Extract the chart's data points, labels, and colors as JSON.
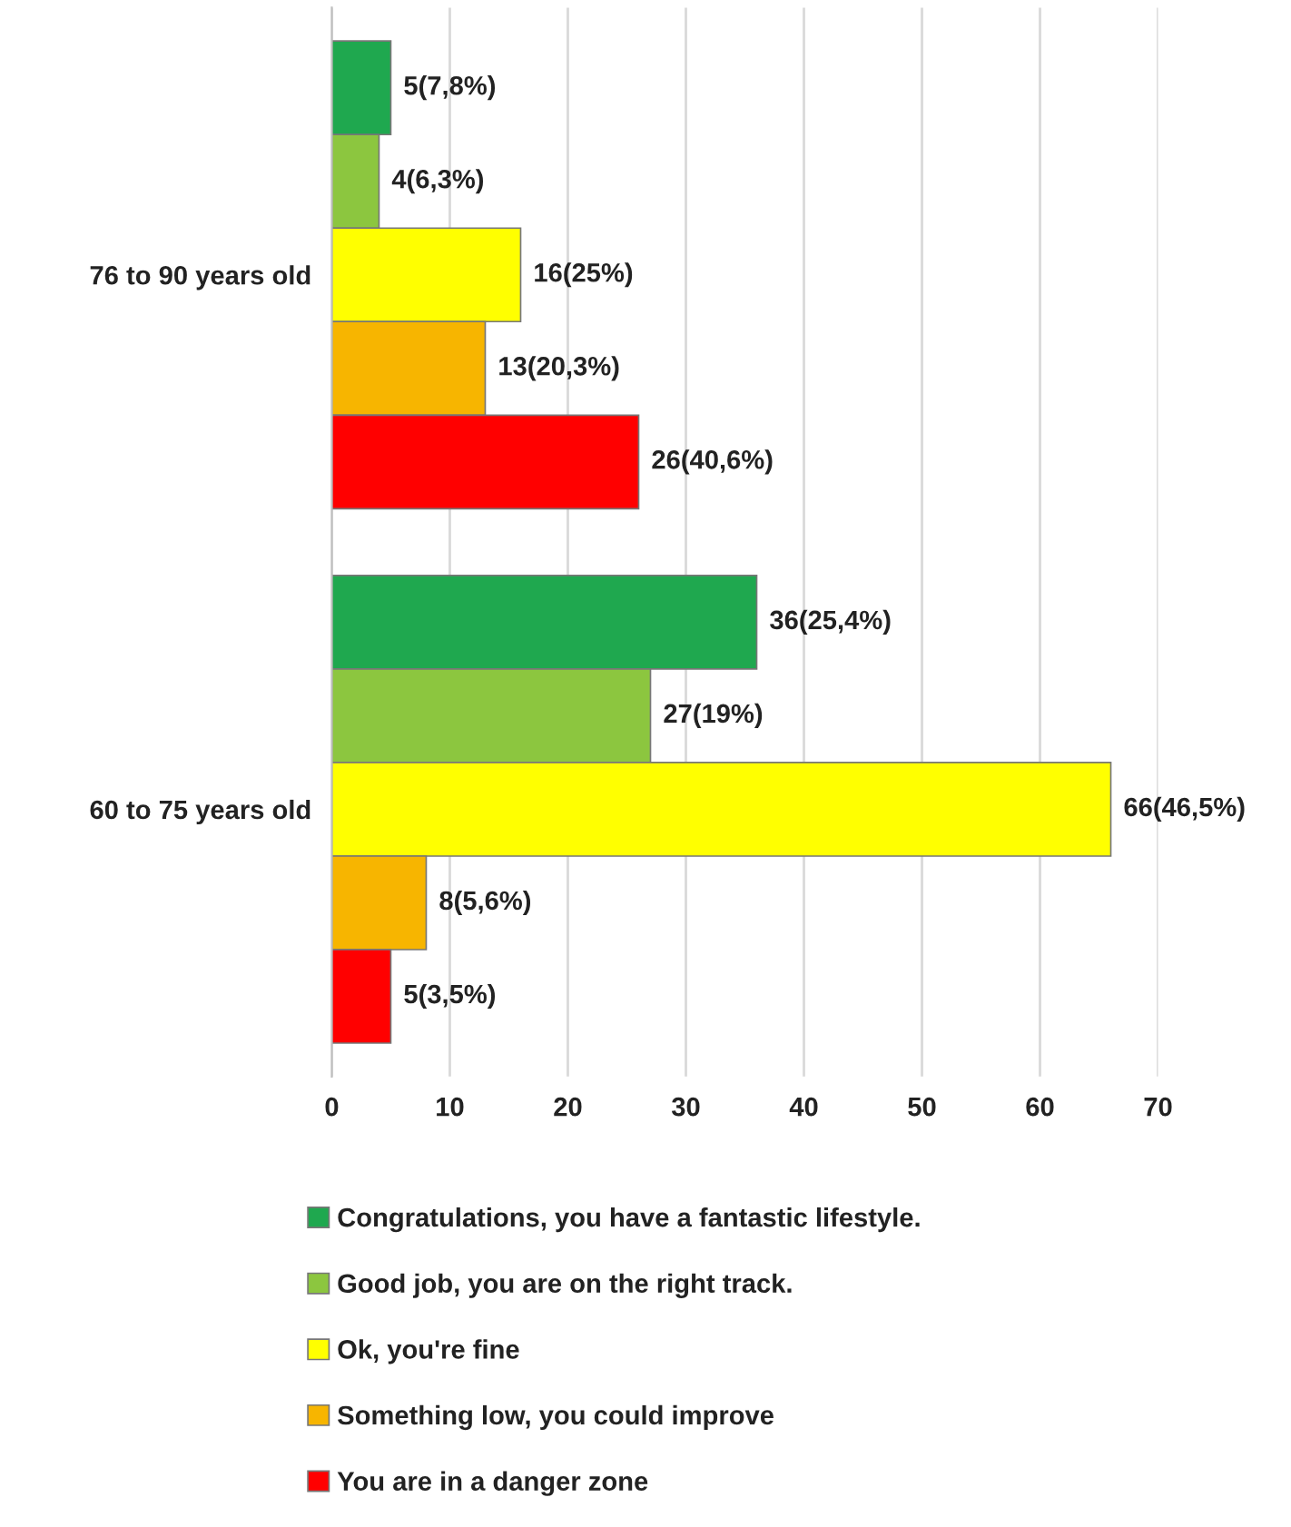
{
  "chart_data": {
    "type": "bar",
    "orientation": "horizontal",
    "categories": [
      "76 to 90 years old",
      "60 to 75 years old"
    ],
    "series": [
      {
        "name": "Congratulations, you have a fantastic lifestyle.",
        "color": "#1fa84f",
        "values": [
          5,
          36
        ],
        "value_labels": [
          "5(7,8%)",
          "36(25,4%)"
        ]
      },
      {
        "name": "Good job, you are on the right track.",
        "color": "#8cc63f",
        "values": [
          4,
          27
        ],
        "value_labels": [
          "4(6,3%)",
          "27(19%)"
        ]
      },
      {
        "name": "Ok, you're fine",
        "color": "#ffff00",
        "values": [
          16,
          66
        ],
        "value_labels": [
          "16(25%)",
          "66(46,5%)"
        ]
      },
      {
        "name": "Something low, you could improve",
        "color": "#f7b500",
        "values": [
          13,
          8
        ],
        "value_labels": [
          "13(20,3%)",
          "8(5,6%)"
        ]
      },
      {
        "name": "You are in a danger zone",
        "color": "#ff0000",
        "values": [
          26,
          5
        ],
        "value_labels": [
          "26(40,6%)",
          "5(3,5%)"
        ]
      }
    ],
    "xlim": [
      0,
      70
    ],
    "xticks": [
      0,
      10,
      20,
      30,
      40,
      50,
      60,
      70
    ],
    "grid": "x",
    "legend": "bottom"
  }
}
